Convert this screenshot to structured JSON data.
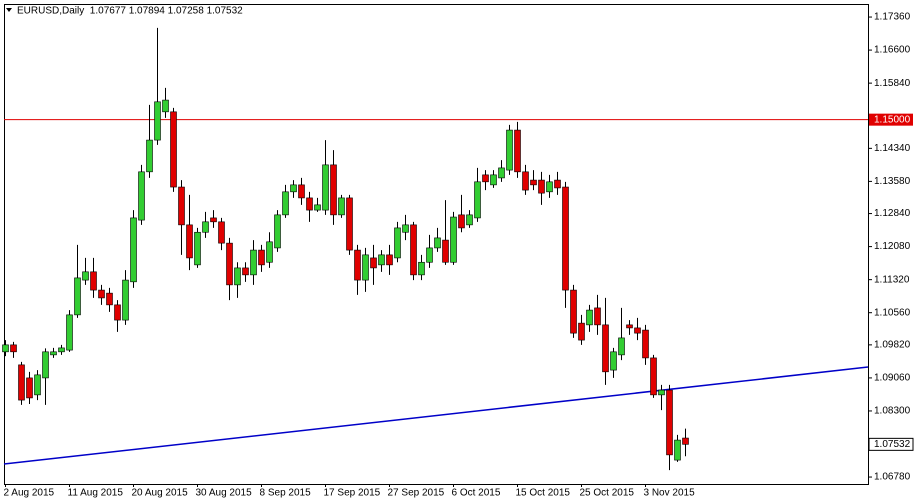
{
  "chart_data": {
    "type": "candlestick",
    "title": "EURUSD,Daily  1.07677 1.07894 1.07258 1.07532",
    "categories": [
      "2 Aug 2015",
      null,
      null,
      null,
      null,
      null,
      null,
      null,
      "11 Aug 2015",
      null,
      null,
      null,
      null,
      null,
      null,
      null,
      "20 Aug 2015",
      null,
      null,
      null,
      null,
      null,
      null,
      null,
      "30 Aug 2015",
      null,
      null,
      null,
      null,
      null,
      null,
      null,
      "8 Sep 2015",
      null,
      null,
      null,
      null,
      null,
      null,
      null,
      "17 Sep 2015",
      null,
      null,
      null,
      null,
      null,
      null,
      null,
      "27 Sep 2015",
      null,
      null,
      null,
      null,
      null,
      null,
      null,
      "6 Oct 2015",
      null,
      null,
      null,
      null,
      null,
      null,
      null,
      "15 Oct 2015",
      null,
      null,
      null,
      null,
      null,
      null,
      null,
      "25 Oct 2015",
      null,
      null,
      null,
      null,
      null,
      null,
      null,
      "3 Nov 2015",
      null,
      null,
      null,
      null,
      null
    ],
    "open": [
      1.0966,
      1.0982,
      1.0936,
      1.0906,
      1.0867,
      1.0906,
      1.0959,
      1.0966,
      1.097,
      1.1051,
      1.1131,
      1.115,
      1.1108,
      1.1101,
      1.1074,
      1.1039,
      1.1127,
      1.1269,
      1.138,
      1.1453,
      1.1518,
      1.1518,
      1.1345,
      1.1258,
      1.1166,
      1.1241,
      1.1274,
      1.1265,
      1.1216,
      1.112,
      1.1159,
      1.1143,
      1.12,
      1.1172,
      1.1205,
      1.1281,
      1.1334,
      1.135,
      1.132,
      1.1292,
      1.1292,
      1.1396,
      1.1281,
      1.132,
      1.12,
      1.1131,
      1.1182,
      1.1166,
      1.1189,
      1.1182,
      1.1241,
      1.1258,
      1.1143,
      1.1172,
      1.1205,
      1.1223,
      1.1172,
      1.1281,
      1.1258,
      1.1274,
      1.1373,
      1.135,
      1.1366,
      1.1384,
      1.1476,
      1.138,
      1.1361,
      1.1361,
      1.1334,
      1.1361,
      1.1345,
      1.1108,
      1.1032,
      1.1028,
      1.1067,
      1.1028,
      1.0924,
      1.0959,
      1.1028,
      1.1021,
      1.1016,
      1.0952,
      1.0867,
      1.0878,
      1.0717,
      1.07677
    ],
    "high": [
      1.0993,
      1.0989,
      1.0943,
      1.092,
      1.0924,
      1.0974,
      1.0975,
      1.0982,
      1.1062,
      1.1212,
      1.1182,
      1.1182,
      1.112,
      1.1113,
      1.1085,
      1.1154,
      1.1292,
      1.1396,
      1.1534,
      1.1711,
      1.1573,
      1.1527,
      1.1361,
      1.1327,
      1.1251,
      1.1288,
      1.1292,
      1.1274,
      1.1228,
      1.1172,
      1.1172,
      1.1223,
      1.1212,
      1.1241,
      1.1292,
      1.135,
      1.1361,
      1.1366,
      1.1334,
      1.132,
      1.1453,
      1.143,
      1.1327,
      1.1327,
      1.1212,
      1.1205,
      1.1212,
      1.12,
      1.1212,
      1.1265,
      1.1281,
      1.1265,
      1.1189,
      1.1235,
      1.1251,
      1.1315,
      1.1288,
      1.1327,
      1.1292,
      1.1389,
      1.1384,
      1.1384,
      1.1407,
      1.1488,
      1.1495,
      1.1396,
      1.1384,
      1.138,
      1.1373,
      1.138,
      1.1357,
      1.112,
      1.1051,
      1.1074,
      1.1097,
      1.109,
      1.0975,
      1.1067,
      1.1039,
      1.1044,
      1.1028,
      1.0959,
      1.089,
      1.089,
      1.0775,
      1.07894
    ],
    "low": [
      1.0956,
      1.0952,
      1.0844,
      1.0846,
      1.0855,
      1.0844,
      1.0952,
      1.0959,
      1.0966,
      1.1044,
      1.112,
      1.109,
      1.1074,
      1.1058,
      1.1012,
      1.1028,
      1.1113,
      1.1258,
      1.1366,
      1.1442,
      1.1504,
      1.1334,
      1.1189,
      1.1154,
      1.1159,
      1.1228,
      1.1251,
      1.12,
      1.1085,
      1.109,
      1.1127,
      1.112,
      1.115,
      1.1159,
      1.1196,
      1.1274,
      1.132,
      1.1304,
      1.1265,
      1.1288,
      1.1281,
      1.1258,
      1.1274,
      1.1189,
      1.1097,
      1.1104,
      1.112,
      1.115,
      1.1143,
      1.1172,
      1.1223,
      1.1131,
      1.1131,
      1.1159,
      1.1196,
      1.1166,
      1.1166,
      1.1241,
      1.1251,
      1.1265,
      1.1338,
      1.1343,
      1.1357,
      1.1373,
      1.1366,
      1.1327,
      1.1338,
      1.1304,
      1.132,
      1.1327,
      1.1067,
      1.0998,
      1.0982,
      1.1012,
      1.1005,
      1.089,
      1.0906,
      1.0947,
      1.1005,
      1.0993,
      1.0936,
      1.086,
      1.0832,
      1.0694,
      1.0713,
      1.07258
    ],
    "close": [
      1.0982,
      1.0966,
      1.0855,
      1.086,
      1.0913,
      1.0966,
      1.0966,
      1.0975,
      1.1051,
      1.1136,
      1.115,
      1.1108,
      1.109,
      1.1074,
      1.1039,
      1.1131,
      1.1274,
      1.138,
      1.1453,
      1.1541,
      1.1545,
      1.1345,
      1.1258,
      1.1182,
      1.1241,
      1.1265,
      1.1265,
      1.1216,
      1.112,
      1.1159,
      1.1143,
      1.12,
      1.1166,
      1.1219,
      1.1281,
      1.1334,
      1.135,
      1.132,
      1.1292,
      1.1304,
      1.1396,
      1.1281,
      1.132,
      1.12,
      1.1131,
      1.1189,
      1.1159,
      1.1189,
      1.1166,
      1.1251,
      1.1258,
      1.1143,
      1.1172,
      1.1205,
      1.1228,
      1.1172,
      1.1276,
      1.1251,
      1.1281,
      1.1357,
      1.1357,
      1.1373,
      1.1389,
      1.1476,
      1.138,
      1.1338,
      1.135,
      1.1331,
      1.1357,
      1.1343,
      1.1108,
      1.1009,
      1.0993,
      1.1062,
      1.1028,
      1.092,
      1.0966,
      1.0998,
      1.1021,
      1.1009,
      1.0952,
      1.0867,
      1.0878,
      1.0729,
      1.0763,
      1.07532
    ],
    "up_color": "#32cd32",
    "down_color": "#e00000",
    "ylim": [
      1.0662,
      1.1766
    ],
    "yticks": [
      {
        "value": 1.1736,
        "label": "1.17360"
      },
      {
        "value": 1.166,
        "label": "1.16600"
      },
      {
        "value": 1.1584,
        "label": "1.15840"
      },
      {
        "value": 1.1434,
        "label": "1.14340"
      },
      {
        "value": 1.1358,
        "label": "1.13580"
      },
      {
        "value": 1.1284,
        "label": "1.12840"
      },
      {
        "value": 1.1208,
        "label": "1.12080"
      },
      {
        "value": 1.1132,
        "label": "1.11320"
      },
      {
        "value": 1.1056,
        "label": "1.10560"
      },
      {
        "value": 1.0982,
        "label": "1.09820"
      },
      {
        "value": 1.0906,
        "label": "1.09060"
      },
      {
        "value": 1.083,
        "label": "1.08300"
      },
      {
        "value": 1.0678,
        "label": "1.06780"
      }
    ],
    "hline": {
      "value": 1.15,
      "label": "1.15000",
      "color": "#e00000"
    },
    "last_price": {
      "value": 1.07532,
      "label": "1.07532"
    },
    "trendline": {
      "values": [
        1.0708,
        1.0931
      ],
      "color": "#0000c8"
    }
  }
}
